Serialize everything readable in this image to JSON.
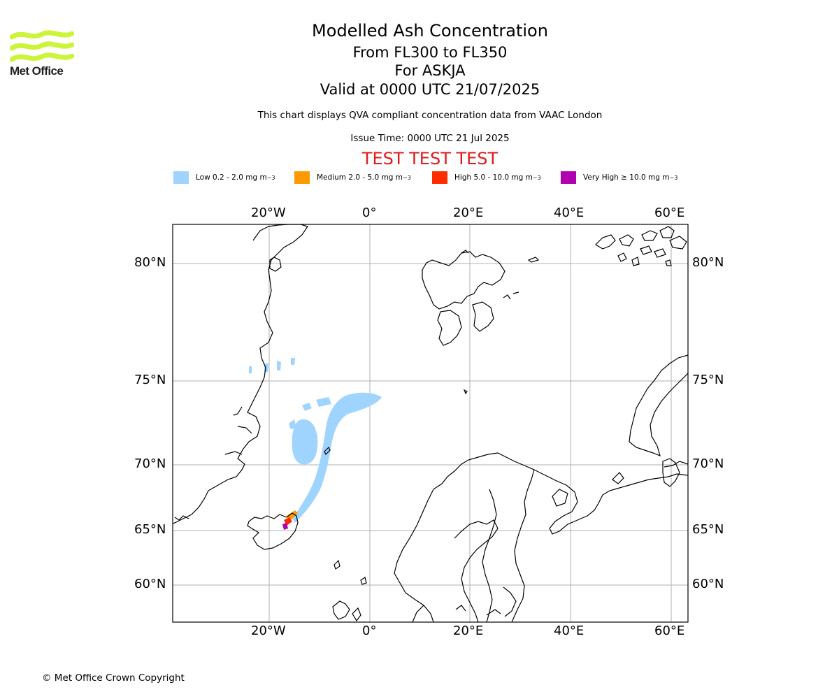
{
  "brand": {
    "name": "Met Office",
    "logo_color": "#ccf53a"
  },
  "header": {
    "title": "Modelled Ash Concentration",
    "flight_levels": "From FL300 to FL350",
    "volcano": "For ASKJA",
    "valid_time": "Valid at 0000 UTC 21/07/2025",
    "description": "This chart displays QVA compliant concentration data from VAAC London",
    "issue_time": "Issue Time: 0000 UTC 21 Jul 2025",
    "test_banner": "TEST TEST TEST"
  },
  "legend": [
    {
      "label": "Low 0.2 - 2.0 mg m",
      "exp": "−3",
      "color": "#9fd4ff"
    },
    {
      "label": "Medium 2.0 - 5.0 mg m",
      "exp": "−3",
      "color": "#ff9900"
    },
    {
      "label": "High 5.0 - 10.0 mg m",
      "exp": "−3",
      "color": "#ff2c00"
    },
    {
      "label": "Very High  ≥  10.0 mg m",
      "exp": "−3",
      "color": "#b000b0"
    }
  ],
  "map": {
    "longitude_ticks": [
      "20°W",
      "0°",
      "20°E",
      "40°E",
      "60°E"
    ],
    "latitude_ticks": [
      "80°N",
      "75°N",
      "70°N",
      "65°N",
      "60°N"
    ]
  },
  "footer": {
    "copyright": "© Met Office Crown Copyright"
  }
}
